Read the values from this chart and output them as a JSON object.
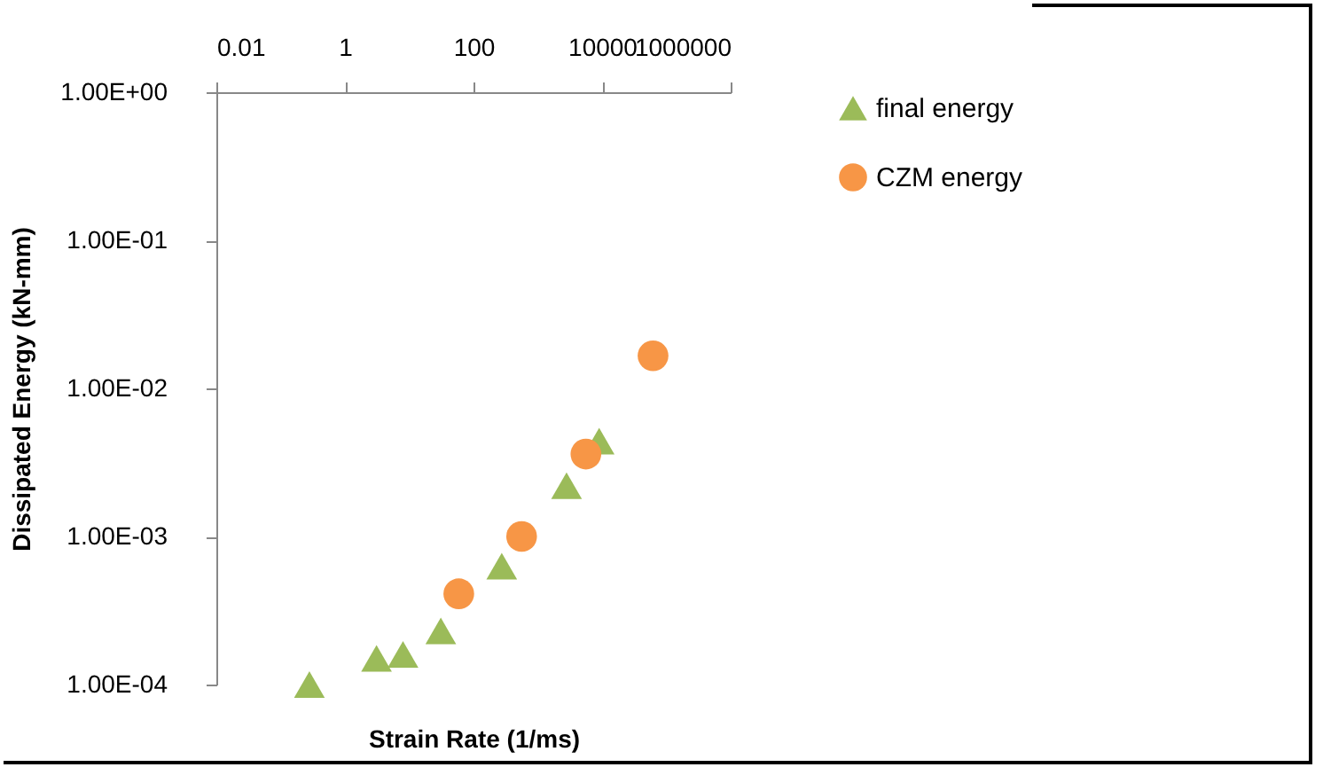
{
  "chart_data": {
    "type": "scatter",
    "xlabel": "Strain Rate (1/ms)",
    "ylabel": "Dissipated Energy (kN-mm)",
    "log": "xy",
    "grid": false,
    "legend": "right",
    "xlim": [
      0.01,
      1000000
    ],
    "xticks": [
      0.01,
      1,
      100,
      10000,
      1000000
    ],
    "ylim": [
      0.0001,
      1
    ],
    "yticks": [
      {
        "value": 0.0001,
        "label": "1.00E-04"
      },
      {
        "value": 0.001,
        "label": "1.00E-03"
      },
      {
        "value": 0.01,
        "label": "1.00E-02"
      },
      {
        "value": 0.1,
        "label": "1.00E-01"
      },
      {
        "value": 1,
        "label": "1.00E+00"
      }
    ],
    "series": [
      {
        "name": "final energy",
        "color": "#9bbb59",
        "marker": "triangle",
        "x": [
          0.28,
          3.1,
          8,
          31,
          275,
          2800,
          9000
        ],
        "values": [
          0.0001,
          0.00015,
          0.00016,
          0.00023,
          0.00063,
          0.0022,
          0.0044
        ]
      },
      {
        "name": "CZM energy",
        "color": "#f79646",
        "marker": "circle",
        "x": [
          59,
          560,
          5600,
          62000
        ],
        "values": [
          0.00041,
          0.001,
          0.0036,
          0.0166
        ]
      }
    ]
  }
}
